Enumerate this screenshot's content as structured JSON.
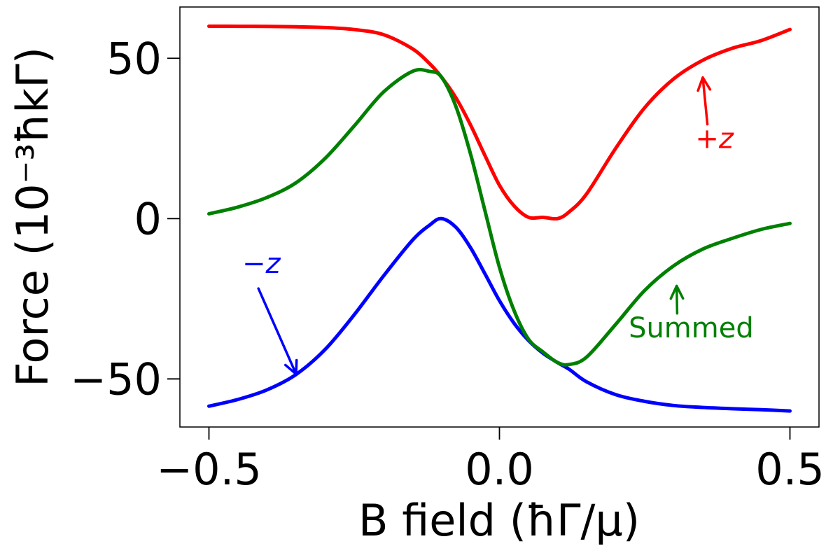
{
  "chart_data": {
    "type": "line",
    "title": "",
    "xlabel": "B field (ħΓ/μ)",
    "ylabel": "Force (10⁻³ħkΓ)",
    "xlim": [
      -0.55,
      0.55
    ],
    "ylim": [
      -65,
      66
    ],
    "xticks": [
      -0.5,
      0.0,
      0.5
    ],
    "xtick_labels": [
      "−0.5",
      "0.0",
      "0.5"
    ],
    "yticks": [
      -50,
      0,
      50
    ],
    "ytick_labels": [
      "−50",
      "0",
      "50"
    ],
    "grid": false,
    "x": [
      -0.5,
      -0.45,
      -0.4,
      -0.35,
      -0.3,
      -0.25,
      -0.2,
      -0.15,
      -0.12,
      -0.1,
      -0.075,
      -0.05,
      -0.025,
      0.0,
      0.025,
      0.05,
      0.075,
      0.1,
      0.12,
      0.15,
      0.2,
      0.25,
      0.3,
      0.35,
      0.4,
      0.45,
      0.5
    ],
    "series": [
      {
        "name": "+z",
        "color": "#ff0000",
        "values": [
          60.0,
          59.98,
          59.94,
          59.83,
          59.58,
          58.97,
          57.4,
          53.0,
          48.3,
          44.2,
          37.7,
          29.3,
          19.7,
          10.4,
          4.0,
          0.4,
          0.4,
          0.0,
          2.1,
          7.7,
          21.9,
          34.6,
          43.6,
          49.4,
          53.1,
          55.5,
          59.0
        ]
      },
      {
        "name": "−z",
        "color": "#0000ff",
        "values": [
          -58.5,
          -56.4,
          -53.4,
          -48.6,
          -40.8,
          -30.0,
          -18.0,
          -6.8,
          -2.0,
          0.0,
          -2.7,
          -9.0,
          -17.2,
          -25.6,
          -32.6,
          -38.0,
          -42.0,
          -44.9,
          -47.0,
          -50.9,
          -54.9,
          -57.0,
          -58.3,
          -58.9,
          -59.3,
          -59.6,
          -60.0
        ]
      },
      {
        "name": "Summed",
        "color": "#008000",
        "values": [
          1.5,
          3.6,
          6.6,
          11.2,
          18.8,
          28.9,
          39.4,
          45.9,
          45.9,
          44.2,
          35.0,
          20.3,
          2.5,
          -15.2,
          -28.6,
          -37.6,
          -41.6,
          -44.9,
          -45.5,
          -43.2,
          -33.0,
          -22.4,
          -14.7,
          -9.5,
          -6.2,
          -3.4,
          -1.5
        ]
      }
    ],
    "annotations": [
      {
        "text": "+z",
        "color": "#ff0000",
        "series": "+z",
        "text_at": [
          0.37,
          22
        ],
        "arrow_to": [
          0.35,
          44
        ]
      },
      {
        "text": "−z",
        "color": "#0000ff",
        "series": "−z",
        "text_at": [
          -0.41,
          -17
        ],
        "arrow_to": [
          -0.35,
          -48.5
        ]
      },
      {
        "text": "Summed",
        "color": "#008000",
        "series": "Summed",
        "text_at": [
          0.33,
          -37
        ],
        "arrow_to": [
          0.305,
          -21
        ]
      }
    ]
  }
}
